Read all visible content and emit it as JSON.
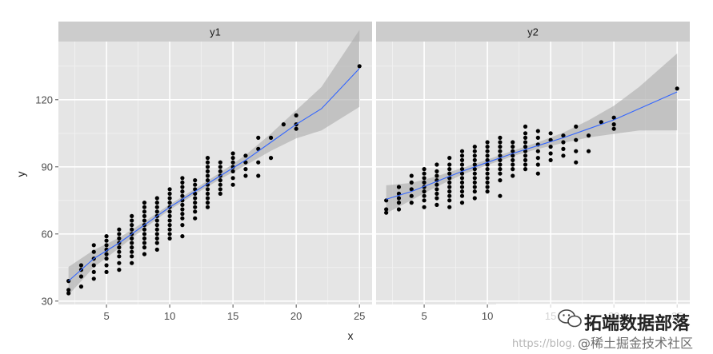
{
  "chart_data": {
    "type": "scatter",
    "facets": [
      {
        "label": "y1",
        "points": [
          [
            2,
            33.5
          ],
          [
            2,
            35
          ],
          [
            2,
            39
          ],
          [
            3,
            36.5
          ],
          [
            3,
            41
          ],
          [
            3,
            44
          ],
          [
            3,
            46
          ],
          [
            4,
            40
          ],
          [
            4,
            43
          ],
          [
            4,
            46
          ],
          [
            4,
            49
          ],
          [
            4,
            52
          ],
          [
            4,
            55
          ],
          [
            5,
            43
          ],
          [
            5,
            46
          ],
          [
            5,
            49
          ],
          [
            5,
            51
          ],
          [
            5,
            53
          ],
          [
            5,
            55
          ],
          [
            5,
            57
          ],
          [
            5,
            59
          ],
          [
            6,
            44
          ],
          [
            6,
            47
          ],
          [
            6,
            50
          ],
          [
            6,
            52
          ],
          [
            6,
            54
          ],
          [
            6,
            56
          ],
          [
            6,
            58
          ],
          [
            6,
            60
          ],
          [
            6,
            62
          ],
          [
            7,
            47
          ],
          [
            7,
            50
          ],
          [
            7,
            52
          ],
          [
            7,
            54
          ],
          [
            7,
            56
          ],
          [
            7,
            58
          ],
          [
            7,
            60
          ],
          [
            7,
            62
          ],
          [
            7,
            64
          ],
          [
            7,
            66
          ],
          [
            7,
            68
          ],
          [
            8,
            51
          ],
          [
            8,
            54
          ],
          [
            8,
            56
          ],
          [
            8,
            58
          ],
          [
            8,
            60
          ],
          [
            8,
            62
          ],
          [
            8,
            64
          ],
          [
            8,
            66
          ],
          [
            8,
            68
          ],
          [
            8,
            70
          ],
          [
            8,
            72
          ],
          [
            8,
            74
          ],
          [
            9,
            53
          ],
          [
            9,
            56
          ],
          [
            9,
            58
          ],
          [
            9,
            60
          ],
          [
            9,
            62
          ],
          [
            9,
            64
          ],
          [
            9,
            66
          ],
          [
            9,
            68
          ],
          [
            9,
            70
          ],
          [
            9,
            72
          ],
          [
            9,
            74
          ],
          [
            9,
            76
          ],
          [
            10,
            58
          ],
          [
            10,
            60
          ],
          [
            10,
            62
          ],
          [
            10,
            64
          ],
          [
            10,
            66
          ],
          [
            10,
            68
          ],
          [
            10,
            70
          ],
          [
            10,
            72
          ],
          [
            10,
            74
          ],
          [
            10,
            76
          ],
          [
            10,
            78
          ],
          [
            10,
            80
          ],
          [
            11,
            59
          ],
          [
            11,
            64
          ],
          [
            11,
            67
          ],
          [
            11,
            69
          ],
          [
            11,
            71
          ],
          [
            11,
            73
          ],
          [
            11,
            75
          ],
          [
            11,
            77
          ],
          [
            11,
            79
          ],
          [
            11,
            81
          ],
          [
            11,
            83
          ],
          [
            11,
            85
          ],
          [
            12,
            67
          ],
          [
            12,
            70
          ],
          [
            12,
            72
          ],
          [
            12,
            74
          ],
          [
            12,
            76
          ],
          [
            12,
            78
          ],
          [
            12,
            80
          ],
          [
            12,
            82
          ],
          [
            12,
            84
          ],
          [
            13,
            72
          ],
          [
            13,
            74
          ],
          [
            13,
            76
          ],
          [
            13,
            78
          ],
          [
            13,
            80
          ],
          [
            13,
            82
          ],
          [
            13,
            84
          ],
          [
            13,
            86
          ],
          [
            13,
            88
          ],
          [
            13,
            90
          ],
          [
            13,
            92
          ],
          [
            13,
            94
          ],
          [
            14,
            78
          ],
          [
            14,
            80
          ],
          [
            14,
            82
          ],
          [
            14,
            84
          ],
          [
            14,
            86
          ],
          [
            14,
            88
          ],
          [
            14,
            90
          ],
          [
            14,
            92
          ],
          [
            15,
            82
          ],
          [
            15,
            85
          ],
          [
            15,
            88
          ],
          [
            15,
            90
          ],
          [
            15,
            92
          ],
          [
            15,
            94
          ],
          [
            15,
            96
          ],
          [
            16,
            86
          ],
          [
            16,
            89
          ],
          [
            16,
            92
          ],
          [
            16,
            95
          ],
          [
            17,
            86
          ],
          [
            17,
            92
          ],
          [
            17,
            98
          ],
          [
            17,
            103
          ],
          [
            18,
            94
          ],
          [
            18,
            103
          ],
          [
            19,
            109
          ],
          [
            20,
            107
          ],
          [
            20,
            109
          ],
          [
            20,
            113
          ],
          [
            25,
            135
          ]
        ],
        "trend": [
          [
            2,
            39
          ],
          [
            4,
            49
          ],
          [
            6,
            56
          ],
          [
            8,
            64
          ],
          [
            10,
            72
          ],
          [
            12,
            79
          ],
          [
            14,
            86
          ],
          [
            16,
            93
          ],
          [
            18,
            101
          ],
          [
            20,
            109
          ],
          [
            22,
            116
          ],
          [
            25,
            134
          ]
        ]
      },
      {
        "label": "y2",
        "points": [
          [
            2,
            69.5
          ],
          [
            2,
            71
          ],
          [
            2,
            75
          ],
          [
            3,
            71
          ],
          [
            3,
            74
          ],
          [
            3,
            76
          ],
          [
            3,
            78
          ],
          [
            3,
            81
          ],
          [
            4,
            74
          ],
          [
            4,
            77
          ],
          [
            4,
            80
          ],
          [
            4,
            83
          ],
          [
            4,
            86
          ],
          [
            5,
            72
          ],
          [
            5,
            75
          ],
          [
            5,
            77
          ],
          [
            5,
            79
          ],
          [
            5,
            81
          ],
          [
            5,
            83
          ],
          [
            5,
            85
          ],
          [
            5,
            87
          ],
          [
            5,
            89
          ],
          [
            6,
            73
          ],
          [
            6,
            76
          ],
          [
            6,
            78
          ],
          [
            6,
            80
          ],
          [
            6,
            82
          ],
          [
            6,
            84
          ],
          [
            6,
            86
          ],
          [
            6,
            88
          ],
          [
            6,
            91
          ],
          [
            7,
            72
          ],
          [
            7,
            75
          ],
          [
            7,
            77
          ],
          [
            7,
            79
          ],
          [
            7,
            81
          ],
          [
            7,
            83
          ],
          [
            7,
            85
          ],
          [
            7,
            87
          ],
          [
            7,
            89
          ],
          [
            7,
            91
          ],
          [
            7,
            94
          ],
          [
            8,
            74
          ],
          [
            8,
            77
          ],
          [
            8,
            79
          ],
          [
            8,
            81
          ],
          [
            8,
            83
          ],
          [
            8,
            85
          ],
          [
            8,
            87
          ],
          [
            8,
            89
          ],
          [
            8,
            91
          ],
          [
            8,
            93
          ],
          [
            8,
            95
          ],
          [
            8,
            97
          ],
          [
            9,
            76
          ],
          [
            9,
            79
          ],
          [
            9,
            81
          ],
          [
            9,
            83
          ],
          [
            9,
            85
          ],
          [
            9,
            87
          ],
          [
            9,
            89
          ],
          [
            9,
            91
          ],
          [
            9,
            93
          ],
          [
            9,
            95
          ],
          [
            9,
            97
          ],
          [
            9,
            99
          ],
          [
            10,
            79
          ],
          [
            10,
            81
          ],
          [
            10,
            83
          ],
          [
            10,
            85
          ],
          [
            10,
            87
          ],
          [
            10,
            89
          ],
          [
            10,
            91
          ],
          [
            10,
            93
          ],
          [
            10,
            95
          ],
          [
            10,
            97
          ],
          [
            10,
            99
          ],
          [
            10,
            101
          ],
          [
            11,
            77
          ],
          [
            11,
            84
          ],
          [
            11,
            87
          ],
          [
            11,
            89
          ],
          [
            11,
            91
          ],
          [
            11,
            93
          ],
          [
            11,
            95
          ],
          [
            11,
            97
          ],
          [
            11,
            99
          ],
          [
            11,
            101
          ],
          [
            11,
            103
          ],
          [
            12,
            86
          ],
          [
            12,
            89
          ],
          [
            12,
            91
          ],
          [
            12,
            93
          ],
          [
            12,
            95
          ],
          [
            12,
            97
          ],
          [
            12,
            99
          ],
          [
            12,
            101
          ],
          [
            13,
            89
          ],
          [
            13,
            91
          ],
          [
            13,
            93
          ],
          [
            13,
            95
          ],
          [
            13,
            97
          ],
          [
            13,
            99
          ],
          [
            13,
            101
          ],
          [
            13,
            103
          ],
          [
            13,
            105
          ],
          [
            13,
            108
          ],
          [
            14,
            87
          ],
          [
            14,
            91
          ],
          [
            14,
            94
          ],
          [
            14,
            97
          ],
          [
            14,
            100
          ],
          [
            14,
            103
          ],
          [
            14,
            106
          ],
          [
            15,
            93
          ],
          [
            15,
            96
          ],
          [
            15,
            99
          ],
          [
            15,
            102
          ],
          [
            15,
            105
          ],
          [
            16,
            95
          ],
          [
            16,
            98
          ],
          [
            16,
            101
          ],
          [
            16,
            104
          ],
          [
            17,
            92
          ],
          [
            17,
            97
          ],
          [
            17,
            102
          ],
          [
            17,
            108
          ],
          [
            18,
            97
          ],
          [
            18,
            104
          ],
          [
            19,
            110
          ],
          [
            20,
            107
          ],
          [
            20,
            109
          ],
          [
            20,
            112
          ],
          [
            25,
            125
          ]
        ],
        "trend": [
          [
            2,
            75.5
          ],
          [
            4,
            79
          ],
          [
            6,
            83.5
          ],
          [
            8,
            88
          ],
          [
            10,
            92
          ],
          [
            12,
            96
          ],
          [
            14,
            99.5
          ],
          [
            16,
            103
          ],
          [
            18,
            107
          ],
          [
            20,
            111
          ],
          [
            22,
            116
          ],
          [
            25,
            123.5
          ]
        ]
      }
    ],
    "xlabel": "x",
    "ylabel": "y",
    "xlim": [
      1.2,
      26
    ],
    "ylim": [
      28.5,
      146
    ],
    "x_ticks": [
      5,
      10,
      15,
      20,
      25
    ],
    "y_ticks": [
      30,
      60,
      90,
      120
    ],
    "grid": true,
    "colors": {
      "panel": "#e5e5e5",
      "strip": "#cccccc",
      "grid_major": "#ffffff",
      "grid_minor": "#f2f2f2",
      "point": "#000000",
      "trend": "#3366ff",
      "band": "#aaaaaa"
    }
  },
  "watermark": {
    "brand": "拓端数据部落",
    "site": "https://blog.",
    "community": "@稀土掘金技术社区"
  }
}
